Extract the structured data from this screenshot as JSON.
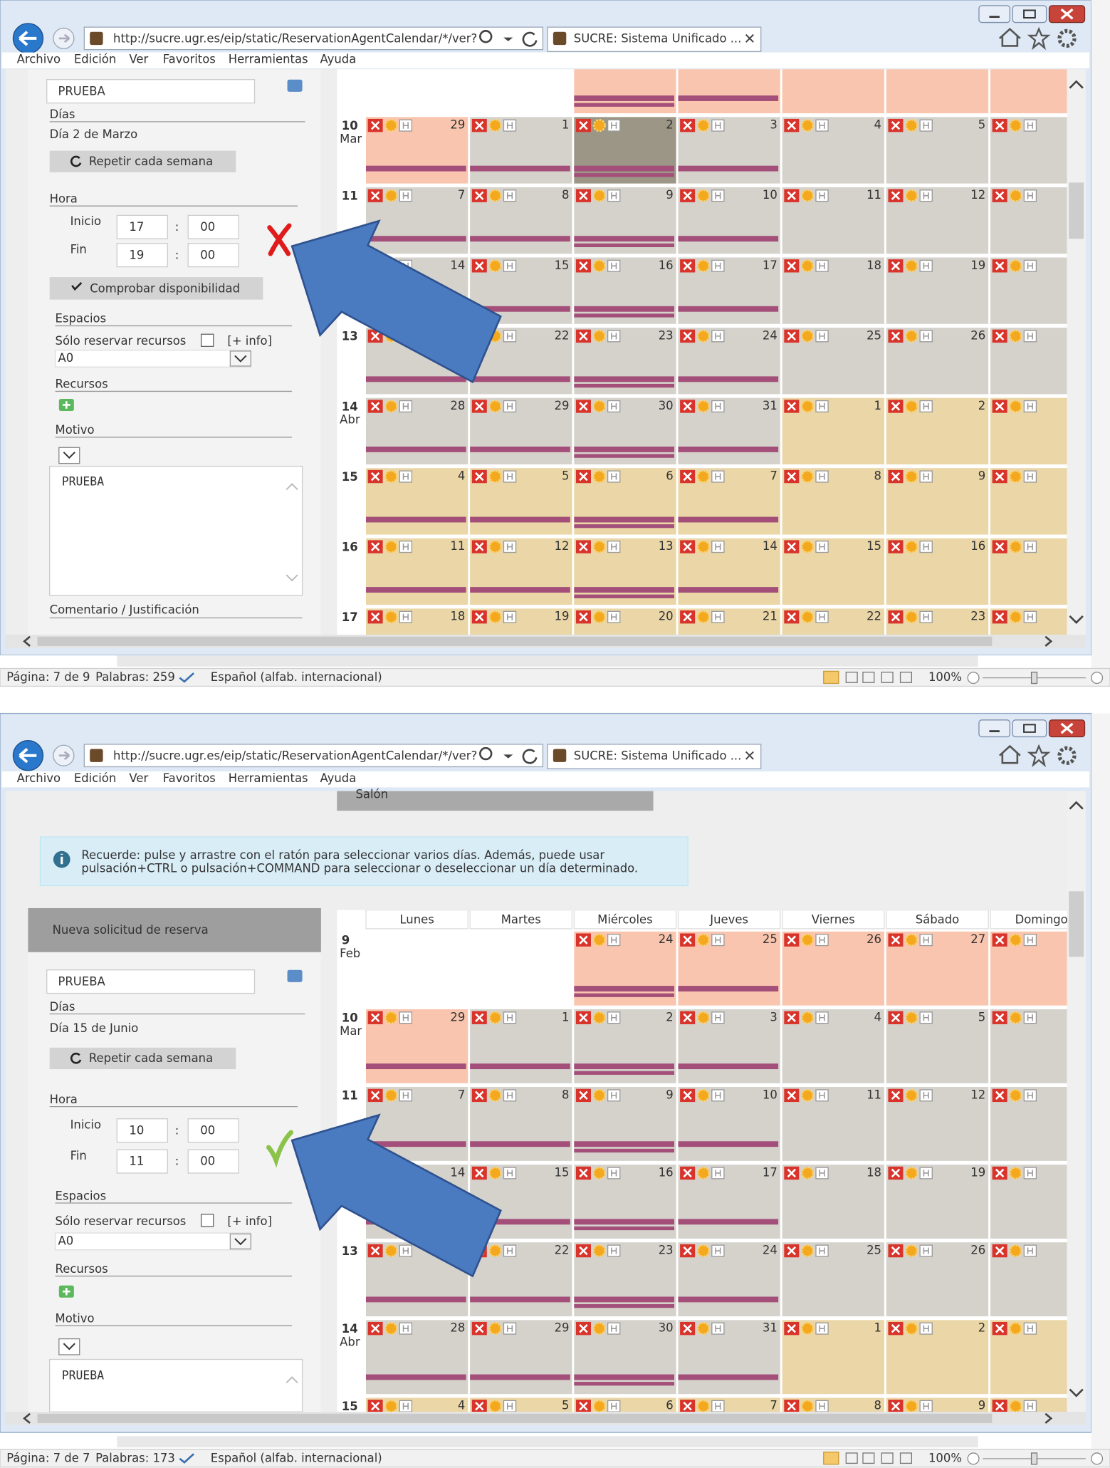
{
  "screens": [
    {
      "browser": {
        "url": "http://sucre.ugr.es/eip/static/ReservationAgentCalendar/*/ver?",
        "tab": "SUCRE: Sistema Unificado ...",
        "menu": [
          "Archivo",
          "Edición",
          "Ver",
          "Favoritos",
          "Herramientas",
          "Ayuda"
        ]
      },
      "form": {
        "name": "PRUEBA",
        "days_label": "Días",
        "days": "Día 2 de Marzo",
        "repeat_button": "Repetir cada semana",
        "time_label": "Hora",
        "start_label": "Inicio",
        "start_hour": "17",
        "start_min": "00",
        "separator": ":",
        "end_label": "Fin",
        "end_hour": "19",
        "end_min": "00",
        "availability": "unavailable",
        "check_button": "Comprobar disponibilidad",
        "spaces_label": "Espacios",
        "resources_only": "Sólo reservar recursos",
        "more_info": "[+ info]",
        "space": "A0",
        "resources_label": "Recursos",
        "reason_label": "Motivo",
        "reason": "PRUEBA",
        "comment_label": "Comentario / Justificación"
      },
      "calendar": {
        "rows": [
          {
            "week": null,
            "days": [],
            "fills": [
              "#ffffff",
              "#ffffff",
              "#f9c5ae",
              "#f9c5ae",
              "#f9c5ae",
              "#f9c5ae",
              "#f9c5ae"
            ]
          },
          {
            "week": "10",
            "month": "Mar",
            "days": [
              29,
              1,
              2,
              3,
              4,
              5
            ],
            "fills": [
              "#f9c5ae",
              "#d5d2cc",
              "#9c9686",
              "#d5d2cc",
              "#d5d2cc",
              "#d5d2cc",
              "#d5d2cc"
            ]
          },
          {
            "week": "11",
            "days": [
              7,
              8,
              9,
              10,
              11,
              12
            ],
            "fills": [
              "#d5d2cc",
              "#d5d2cc",
              "#d5d2cc",
              "#d5d2cc",
              "#d5d2cc",
              "#d5d2cc",
              "#d5d2cc"
            ]
          },
          {
            "week": null,
            "days": [
              14,
              15,
              16,
              17,
              18,
              19
            ],
            "fills": [
              "#d5d2cc",
              "#d5d2cc",
              "#d5d2cc",
              "#d5d2cc",
              "#d5d2cc",
              "#d5d2cc",
              "#d5d2cc"
            ]
          },
          {
            "week": "13",
            "days": [
              null,
              22,
              23,
              24,
              25,
              26
            ],
            "fills": [
              "#d5d2cc",
              "#d5d2cc",
              "#d5d2cc",
              "#d5d2cc",
              "#d5d2cc",
              "#d5d2cc",
              "#d5d2cc"
            ]
          },
          {
            "week": "14",
            "month": "Abr",
            "days": [
              28,
              29,
              30,
              31,
              1,
              2
            ],
            "fills": [
              "#d5d2cc",
              "#d5d2cc",
              "#d5d2cc",
              "#d5d2cc",
              "#ead6a6",
              "#ead6a6",
              "#ead6a6"
            ]
          },
          {
            "week": "15",
            "days": [
              4,
              5,
              6,
              7,
              8,
              9
            ],
            "fills": [
              "#ead6a6",
              "#ead6a6",
              "#ead6a6",
              "#ead6a6",
              "#ead6a6",
              "#ead6a6",
              "#ead6a6"
            ]
          },
          {
            "week": "16",
            "days": [
              11,
              12,
              13,
              14,
              15,
              16
            ],
            "fills": [
              "#ead6a6",
              "#ead6a6",
              "#ead6a6",
              "#ead6a6",
              "#ead6a6",
              "#ead6a6",
              "#ead6a6"
            ]
          },
          {
            "week": "17",
            "days": [
              18,
              19,
              20,
              21,
              22,
              23
            ],
            "fills": [
              "#ead6a6",
              "#ead6a6",
              "#ead6a6",
              "#ead6a6",
              "#ead6a6",
              "#ead6a6",
              "#ead6a6"
            ]
          }
        ]
      },
      "status": {
        "page": "Página: 7 de 9",
        "words": "Palabras: 259",
        "language": "Español (alfab. internacional)",
        "zoom": "100%"
      }
    },
    {
      "browser": {
        "url": "http://sucre.ugr.es/eip/static/ReservationAgentCalendar/*/ver?",
        "tab": "SUCRE: Sistema Unificado ...",
        "menu": [
          "Archivo",
          "Edición",
          "Ver",
          "Favoritos",
          "Herramientas",
          "Ayuda"
        ]
      },
      "banner": "Salón",
      "notice": [
        "Recuerde: pulse y arrastre con el ratón para seleccionar varios días. Además, puede usar",
        "pulsación+CTRL o pulsación+COMMAND para seleccionar o deseleccionar un día determinado."
      ],
      "header": "Nueva solicitud de reserva",
      "form": {
        "name": "PRUEBA",
        "days_label": "Días",
        "days": "Día 15 de Junio",
        "repeat_button": "Repetir cada semana",
        "time_label": "Hora",
        "start_label": "Inicio",
        "start_hour": "10",
        "start_min": "00",
        "separator": ":",
        "end_label": "Fin",
        "end_hour": "11",
        "end_min": "00",
        "availability": "available",
        "spaces_label": "Espacios",
        "resources_only": "Sólo reservar recursos",
        "more_info": "[+ info]",
        "space": "A0",
        "resources_label": "Recursos",
        "reason_label": "Motivo",
        "reason": "PRUEBA"
      },
      "calendar": {
        "weekdays": [
          "Lunes",
          "Martes",
          "Miércoles",
          "Jueves",
          "Viernes",
          "Sábado",
          "Domingo"
        ],
        "rows": [
          {
            "week": "9",
            "month": "Feb",
            "days": [
              null,
              null,
              24,
              25,
              26,
              27
            ],
            "fills": [
              "#ffffff",
              "#ffffff",
              "#f9c5ae",
              "#f9c5ae",
              "#f9c5ae",
              "#f9c5ae",
              "#f9c5ae"
            ]
          },
          {
            "week": "10",
            "month": "Mar",
            "days": [
              29,
              1,
              2,
              3,
              4,
              5
            ],
            "fills": [
              "#f9c5ae",
              "#d5d2cc",
              "#d5d2cc",
              "#d5d2cc",
              "#d5d2cc",
              "#d5d2cc",
              "#d5d2cc"
            ]
          },
          {
            "week": "11",
            "days": [
              7,
              8,
              9,
              10,
              11,
              12
            ],
            "fills": [
              "#d5d2cc",
              "#d5d2cc",
              "#d5d2cc",
              "#d5d2cc",
              "#d5d2cc",
              "#d5d2cc",
              "#d5d2cc"
            ]
          },
          {
            "week": null,
            "days": [
              14,
              15,
              16,
              17,
              18,
              19
            ],
            "fills": [
              "#d5d2cc",
              "#d5d2cc",
              "#d5d2cc",
              "#d5d2cc",
              "#d5d2cc",
              "#d5d2cc",
              "#d5d2cc"
            ]
          },
          {
            "week": "13",
            "days": [
              null,
              22,
              23,
              24,
              25,
              26
            ],
            "fills": [
              "#d5d2cc",
              "#d5d2cc",
              "#d5d2cc",
              "#d5d2cc",
              "#d5d2cc",
              "#d5d2cc",
              "#d5d2cc"
            ]
          },
          {
            "week": "14",
            "month": "Abr",
            "days": [
              28,
              29,
              30,
              31,
              1,
              2
            ],
            "fills": [
              "#d5d2cc",
              "#d5d2cc",
              "#d5d2cc",
              "#d5d2cc",
              "#ead6a6",
              "#ead6a6",
              "#ead6a6"
            ]
          },
          {
            "week": "15",
            "days": [
              4,
              5,
              6,
              7,
              8,
              9
            ],
            "fills": [
              "#ead6a6",
              "#ead6a6",
              "#ead6a6",
              "#ead6a6",
              "#ead6a6",
              "#ead6a6",
              "#ead6a6"
            ]
          }
        ]
      },
      "status": {
        "page": "Página: 7 de 7",
        "words": "Palabras: 173",
        "language": "Español (alfab. internacional)",
        "zoom": "100%"
      }
    }
  ]
}
